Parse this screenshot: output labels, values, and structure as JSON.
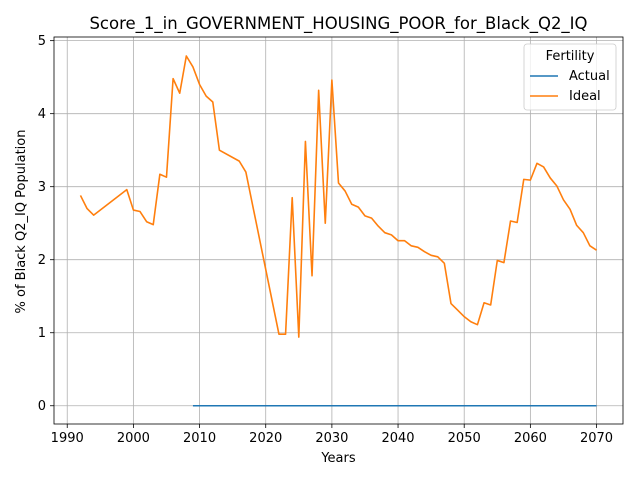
{
  "chart_data": {
    "type": "line",
    "title": "Score_1_in_GOVERNMENT_HOUSING_POOR_for_Black_Q2_IQ",
    "xlabel": "Years",
    "ylabel": "% of Black Q2_IQ Population",
    "xlim": [
      1988,
      2074
    ],
    "ylim": [
      -0.25,
      5.05
    ],
    "xticks": [
      1990,
      2000,
      2010,
      2020,
      2030,
      2040,
      2050,
      2060,
      2070
    ],
    "yticks": [
      0,
      1,
      2,
      3,
      4,
      5
    ],
    "grid": true,
    "legend": {
      "title": "Fertility",
      "placement": "top-right"
    },
    "series": [
      {
        "name": "Actual",
        "color": "#1f77b4",
        "x": [
          2009,
          2070
        ],
        "y": [
          0,
          0
        ]
      },
      {
        "name": "Ideal",
        "color": "#ff7f0e",
        "x": [
          1992,
          1993,
          1994,
          1999,
          2000,
          2001,
          2002,
          2003,
          2004,
          2005,
          2006,
          2007,
          2008,
          2009,
          2010,
          2011,
          2012,
          2013,
          2016,
          2017,
          2022,
          2023,
          2024,
          2025,
          2026,
          2027,
          2028,
          2029,
          2030,
          2031,
          2032,
          2033,
          2034,
          2035,
          2036,
          2037,
          2038,
          2039,
          2040,
          2041,
          2042,
          2043,
          2044,
          2045,
          2046,
          2047,
          2048,
          2049,
          2050,
          2051,
          2052,
          2053,
          2054,
          2055,
          2056,
          2057,
          2058,
          2059,
          2060,
          2061,
          2062,
          2063,
          2064,
          2065,
          2066,
          2067,
          2068,
          2069,
          2070
        ],
        "y": [
          2.88,
          2.7,
          2.61,
          2.96,
          2.68,
          2.66,
          2.52,
          2.48,
          3.17,
          3.13,
          4.48,
          4.28,
          4.79,
          4.64,
          4.4,
          4.24,
          4.16,
          3.5,
          3.35,
          3.2,
          0.98,
          0.98,
          2.85,
          0.94,
          3.62,
          1.78,
          4.32,
          2.5,
          4.46,
          3.05,
          2.94,
          2.76,
          2.72,
          2.6,
          2.57,
          2.46,
          2.37,
          2.34,
          2.26,
          2.26,
          2.19,
          2.17,
          2.11,
          2.06,
          2.04,
          1.95,
          1.4,
          1.31,
          1.22,
          1.15,
          1.11,
          1.41,
          1.38,
          1.99,
          1.96,
          2.53,
          2.51,
          3.1,
          3.09,
          3.32,
          3.27,
          3.12,
          3.01,
          2.82,
          2.69,
          2.47,
          2.37,
          2.19,
          2.13
        ]
      }
    ]
  }
}
